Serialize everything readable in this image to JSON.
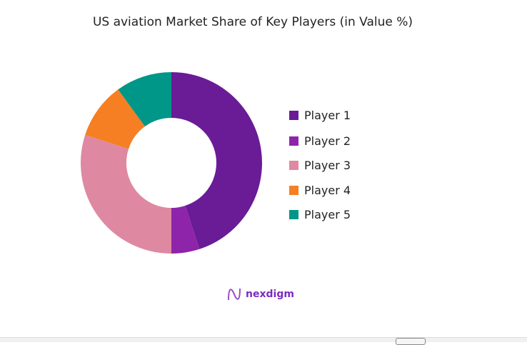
{
  "chart_data": {
    "type": "pie",
    "donut": true,
    "title": "US aviation Market Share of Key Players (in Value %)",
    "categories": [
      "Player 1",
      "Player 2",
      "Player 3",
      "Player 4",
      "Player 5"
    ],
    "values": [
      45,
      5,
      30,
      10,
      10
    ],
    "colors": [
      "#6a1b96",
      "#8e24aa",
      "#de89a1",
      "#f57f22",
      "#009688"
    ],
    "legend_position": "right"
  },
  "logo": {
    "text": "nexdigm"
  }
}
